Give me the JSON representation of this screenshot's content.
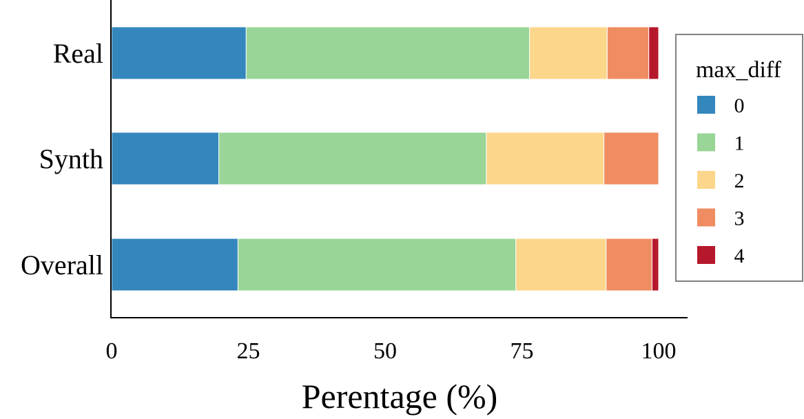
{
  "chart_data": {
    "type": "bar",
    "orientation": "horizontal",
    "stacked": true,
    "categories": [
      "Real",
      "Synth",
      "Overall"
    ],
    "series": [
      {
        "name": "0",
        "color": "#3487bd",
        "values": [
          24.6,
          19.6,
          23.1
        ]
      },
      {
        "name": "1",
        "color": "#99d596",
        "values": [
          51.8,
          48.9,
          50.8
        ]
      },
      {
        "name": "2",
        "color": "#fcd68b",
        "values": [
          14.2,
          21.5,
          16.5
        ]
      },
      {
        "name": "3",
        "color": "#ef8c62",
        "values": [
          7.6,
          10.0,
          8.4
        ]
      },
      {
        "name": "4",
        "color": "#b6182b",
        "values": [
          1.8,
          0.0,
          1.2
        ]
      }
    ],
    "xlabel": "Perentage (%)",
    "ylabel": "",
    "xlim": [
      0,
      105
    ],
    "xticks": [
      "0",
      "25",
      "50",
      "75",
      "100"
    ],
    "legend": {
      "title": "max_diff",
      "position": "right"
    },
    "grid": false
  }
}
